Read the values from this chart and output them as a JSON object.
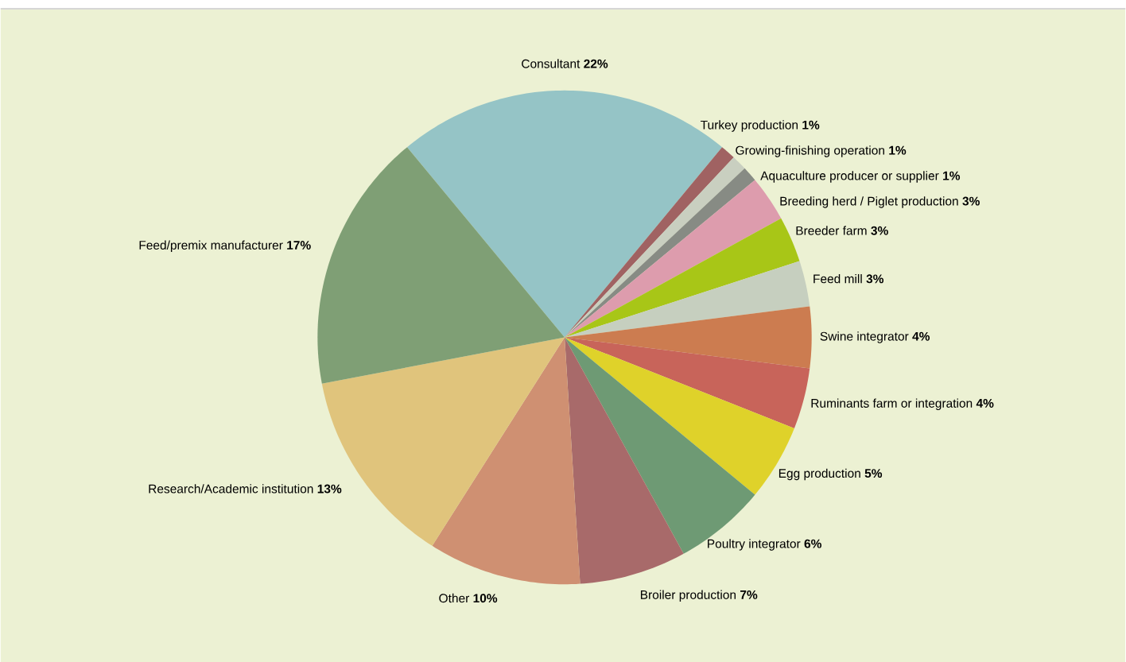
{
  "chart_data": {
    "type": "pie",
    "categories": [
      "Consultant",
      "Turkey production",
      "Growing-finishing operation",
      "Aquaculture producer or supplier",
      "Breeding herd / Piglet production",
      "Breeder farm",
      "Feed mill",
      "Swine integrator",
      "Ruminants farm or integration",
      "Egg production",
      "Poultry integrator",
      "Broiler production",
      "Other",
      "Research/Academic institution",
      "Feed/premix manufacturer"
    ],
    "values": [
      22,
      1,
      1,
      1,
      3,
      3,
      3,
      4,
      4,
      5,
      6,
      7,
      10,
      13,
      17
    ],
    "value_labels": [
      "22%",
      "1%",
      "1%",
      "1%",
      "3%",
      "3%",
      "3%",
      "4%",
      "4%",
      "5%",
      "6%",
      "7%",
      "10%",
      "13%",
      "17%"
    ],
    "colors": [
      "#95c4c6",
      "#a06262",
      "#c9cfc0",
      "#878b84",
      "#dd9cad",
      "#a8c617",
      "#c6cfbf",
      "#cc7c50",
      "#c8645a",
      "#dfd22a",
      "#6e9a74",
      "#a86a6a",
      "#cf9072",
      "#e0c47c",
      "#7f9f75"
    ]
  }
}
